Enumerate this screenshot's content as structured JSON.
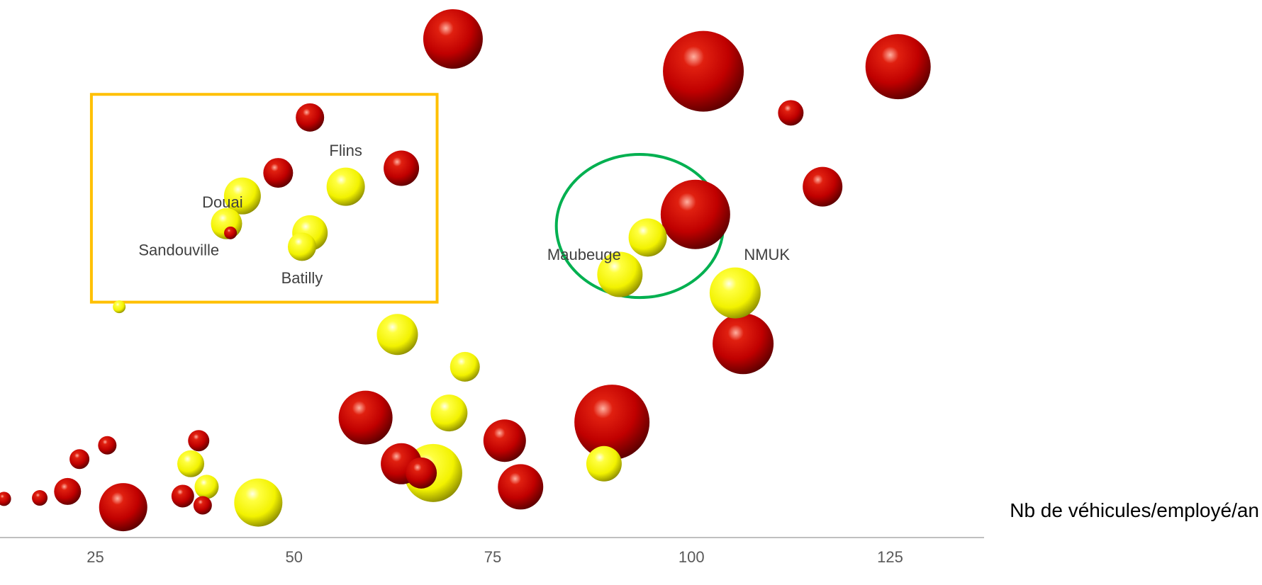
{
  "chart_data": {
    "type": "scatter",
    "title": "",
    "xlabel": "Nb de véhicules/employé/an",
    "ylabel": "",
    "xlim": [
      13,
      137
    ],
    "x_ticks": [
      "25",
      "50",
      "75",
      "100",
      "125"
    ],
    "y_ticks": [],
    "grid": false,
    "legend": "none",
    "colors": {
      "red": "#c00000",
      "yellow": "#ffff00",
      "highlight_rect": "#ffc000",
      "highlight_ellipse": "#00b050",
      "axis": "#bfbfbf"
    },
    "series": [
      {
        "color": "red",
        "points": [
          {
            "x": 13.5,
            "y": 1.2,
            "size": 10
          },
          {
            "x": 18.0,
            "y": 1.3,
            "size": 11
          },
          {
            "x": 21.5,
            "y": 2.0,
            "size": 19
          },
          {
            "x": 23.0,
            "y": 5.5,
            "size": 14
          },
          {
            "x": 26.5,
            "y": 7.0,
            "size": 13
          },
          {
            "x": 28.5,
            "y": 0.3,
            "size": 34
          },
          {
            "x": 36.0,
            "y": 1.5,
            "size": 16
          },
          {
            "x": 38.0,
            "y": 7.5,
            "size": 15
          },
          {
            "x": 38.5,
            "y": 0.5,
            "size": 13
          },
          {
            "x": 42.0,
            "y": 30.0,
            "size": 9
          },
          {
            "x": 48.0,
            "y": 36.5,
            "size": 21
          },
          {
            "x": 52.0,
            "y": 42.5,
            "size": 20
          },
          {
            "x": 59.0,
            "y": 10.0,
            "size": 38
          },
          {
            "x": 63.5,
            "y": 37.0,
            "size": 25
          },
          {
            "x": 63.5,
            "y": 5.0,
            "size": 29
          },
          {
            "x": 66.0,
            "y": 4.0,
            "size": 22
          },
          {
            "x": 70.0,
            "y": 51.0,
            "size": 42
          },
          {
            "x": 76.5,
            "y": 7.5,
            "size": 30
          },
          {
            "x": 78.5,
            "y": 2.5,
            "size": 32
          },
          {
            "x": 90.0,
            "y": 9.5,
            "size": 53
          },
          {
            "x": 100.5,
            "y": 32.0,
            "size": 49
          },
          {
            "x": 101.5,
            "y": 47.5,
            "size": 57
          },
          {
            "x": 106.5,
            "y": 18.0,
            "size": 43
          },
          {
            "x": 112.5,
            "y": 43.0,
            "size": 18
          },
          {
            "x": 116.5,
            "y": 35.0,
            "size": 28
          },
          {
            "x": 126.0,
            "y": 48.0,
            "size": 46
          }
        ]
      },
      {
        "color": "yellow",
        "points": [
          {
            "x": 28.0,
            "y": 22.0,
            "size": 9
          },
          {
            "x": 37.0,
            "y": 5.0,
            "size": 19
          },
          {
            "x": 39.0,
            "y": 2.5,
            "size": 17
          },
          {
            "x": 41.5,
            "y": 31.0,
            "size": 22
          },
          {
            "x": 43.5,
            "y": 34.0,
            "size": 26
          },
          {
            "x": 45.5,
            "y": 0.8,
            "size": 34
          },
          {
            "x": 51.0,
            "y": 28.5,
            "size": 20
          },
          {
            "x": 52.0,
            "y": 30.0,
            "size": 25
          },
          {
            "x": 56.5,
            "y": 35.0,
            "size": 27
          },
          {
            "x": 63.0,
            "y": 19.0,
            "size": 29
          },
          {
            "x": 67.5,
            "y": 4.0,
            "size": 41
          },
          {
            "x": 69.5,
            "y": 10.5,
            "size": 26
          },
          {
            "x": 71.5,
            "y": 15.5,
            "size": 21
          },
          {
            "x": 89.0,
            "y": 5.0,
            "size": 25
          },
          {
            "x": 91.0,
            "y": 25.5,
            "size": 32
          },
          {
            "x": 94.5,
            "y": 29.5,
            "size": 27
          },
          {
            "x": 105.5,
            "y": 23.5,
            "size": 36
          }
        ]
      }
    ],
    "annotations": [
      {
        "text": "Flins",
        "x": 56.5,
        "y": 38.8
      },
      {
        "text": "Douai",
        "x": 41.0,
        "y": 33.2
      },
      {
        "text": "Sandouville",
        "x": 35.5,
        "y": 28.0
      },
      {
        "text": "Batilly",
        "x": 51.0,
        "y": 25.0
      },
      {
        "text": "Maubeuge",
        "x": 86.5,
        "y": 27.5
      },
      {
        "text": "NMUK",
        "x": 109.5,
        "y": 27.5
      }
    ],
    "highlight_regions": [
      {
        "shape": "rectangle",
        "color": "highlight_rect",
        "x_range": [
          24.5,
          68.0
        ],
        "y_range": [
          22.5,
          45.0
        ]
      },
      {
        "shape": "ellipse",
        "color": "highlight_ellipse",
        "x_range": [
          83.0,
          104.0
        ],
        "y_range": [
          23.0,
          38.5
        ]
      }
    ]
  }
}
